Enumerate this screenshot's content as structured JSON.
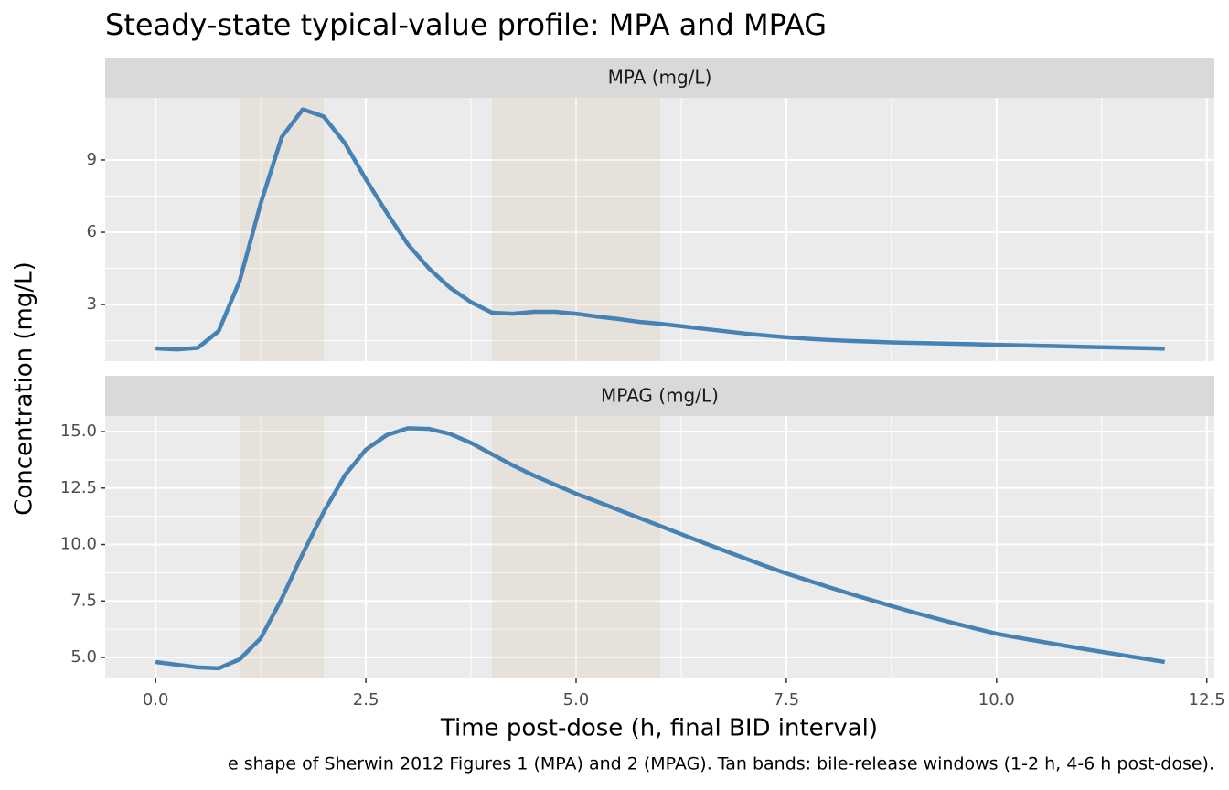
{
  "figure": {
    "title": "Steady-state typical-value profile: MPA and MPAG",
    "xlabel": "Time post-dose (h, final BID interval)",
    "ylabel": "Concentration (mg/L)",
    "caption": "e shape of Sherwin 2012 Figures 1 (MPA) and 2 (MPAG). Tan bands: bile-release windows (1-2 h, 4-6 h post-dose)."
  },
  "chart_data": [
    {
      "type": "line",
      "title": "MPA (mg/L)",
      "color": "#4682b4",
      "grid": true,
      "band_color": "#d2b48c",
      "bands": [
        {
          "xmin": 1,
          "xmax": 2
        },
        {
          "xmin": 4,
          "xmax": 6
        }
      ],
      "x": [
        0,
        0.25,
        0.5,
        0.75,
        1,
        1.25,
        1.5,
        1.75,
        2,
        2.25,
        2.5,
        2.75,
        3,
        3.25,
        3.5,
        3.75,
        4,
        4.25,
        4.5,
        4.75,
        5,
        5.25,
        5.5,
        5.75,
        6,
        6.25,
        6.5,
        6.75,
        7,
        7.25,
        7.5,
        7.75,
        8,
        8.25,
        8.5,
        8.75,
        9,
        9.25,
        9.5,
        9.75,
        10,
        10.25,
        10.5,
        10.75,
        11,
        11.25,
        11.5,
        11.75,
        12
      ],
      "values": [
        1.18,
        1.14,
        1.2,
        1.9,
        3.99,
        7.2,
        9.95,
        11.1,
        10.8,
        9.7,
        8.2,
        6.8,
        5.5,
        4.5,
        3.7,
        3.1,
        2.66,
        2.62,
        2.7,
        2.7,
        2.62,
        2.5,
        2.4,
        2.28,
        2.2,
        2.1,
        2.0,
        1.9,
        1.8,
        1.72,
        1.64,
        1.58,
        1.53,
        1.49,
        1.46,
        1.43,
        1.41,
        1.39,
        1.37,
        1.35,
        1.33,
        1.31,
        1.29,
        1.27,
        1.25,
        1.23,
        1.21,
        1.19,
        1.17
      ],
      "xlim": [
        -0.6,
        12.59
      ],
      "xticks": [
        0,
        2.5,
        5,
        7.5,
        10,
        12.5
      ],
      "ylim": [
        0.65,
        11.58
      ],
      "yticks": [
        3,
        6,
        9
      ]
    },
    {
      "type": "line",
      "title": "MPAG (mg/L)",
      "color": "#4682b4",
      "grid": true,
      "band_color": "#d2b48c",
      "bands": [
        {
          "xmin": 1,
          "xmax": 2
        },
        {
          "xmin": 4,
          "xmax": 6
        }
      ],
      "x": [
        0,
        0.25,
        0.5,
        0.75,
        1,
        1.25,
        1.5,
        1.75,
        2,
        2.25,
        2.5,
        2.75,
        3,
        3.25,
        3.5,
        3.75,
        4,
        4.25,
        4.5,
        4.75,
        5,
        5.25,
        5.5,
        5.75,
        6,
        6.25,
        6.5,
        6.75,
        7,
        7.25,
        7.5,
        7.75,
        8,
        8.25,
        8.5,
        8.75,
        9,
        9.25,
        9.5,
        9.75,
        10,
        10.25,
        10.5,
        10.75,
        11,
        11.25,
        11.5,
        11.75,
        12
      ],
      "values": [
        4.8,
        4.68,
        4.56,
        4.52,
        4.92,
        5.85,
        7.6,
        9.6,
        11.45,
        13.06,
        14.2,
        14.85,
        15.15,
        15.12,
        14.9,
        14.5,
        14.0,
        13.5,
        13.05,
        12.65,
        12.25,
        11.9,
        11.54,
        11.18,
        10.82,
        10.46,
        10.1,
        9.75,
        9.4,
        9.05,
        8.72,
        8.42,
        8.12,
        7.83,
        7.55,
        7.28,
        7.01,
        6.76,
        6.51,
        6.28,
        6.05,
        5.88,
        5.72,
        5.56,
        5.4,
        5.25,
        5.1,
        4.95,
        4.8
      ],
      "xlim": [
        -0.6,
        12.59
      ],
      "xticks": [
        {
          "value": 0,
          "label": "0.0"
        },
        2.5,
        {
          "value": 5,
          "label": "5.0"
        },
        7.5,
        {
          "value": 10,
          "label": "10.0"
        },
        12.5
      ],
      "ylim": [
        4.07,
        15.69
      ],
      "yticks": [
        {
          "value": 5,
          "label": "5.0"
        },
        7.5,
        {
          "value": 10,
          "label": "10.0"
        },
        12.5,
        {
          "value": 15,
          "label": "15.0"
        }
      ]
    }
  ]
}
